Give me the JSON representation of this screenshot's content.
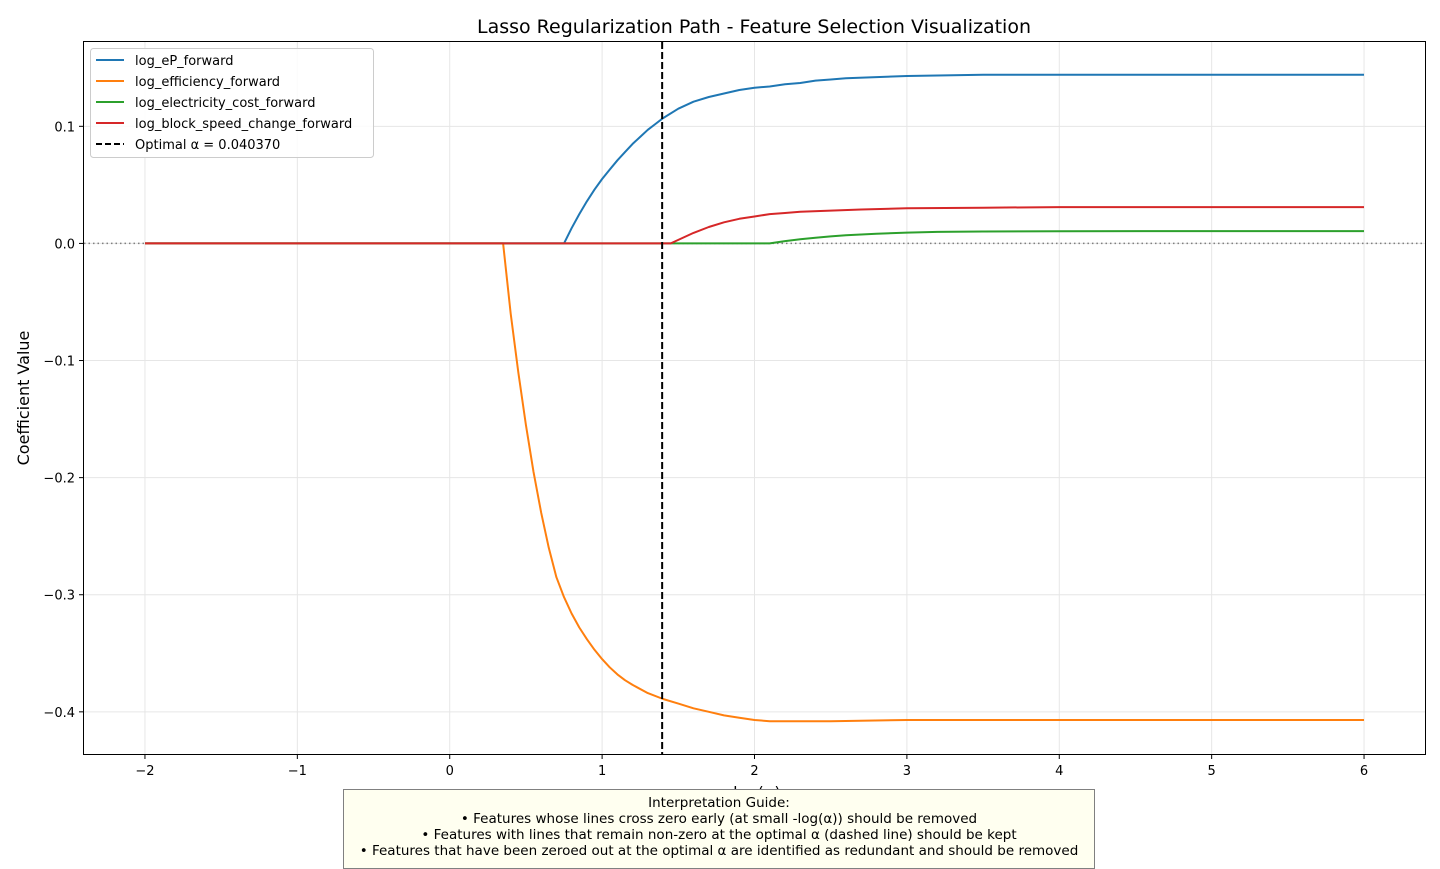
{
  "chart_data": {
    "type": "line",
    "title": "Lasso Regularization Path - Feature Selection Visualization",
    "xlabel": "-log(α)",
    "ylabel": "Coefficient Value",
    "xlim": [
      -2.4,
      6.4
    ],
    "ylim": [
      -0.436,
      0.172
    ],
    "xticks": [
      -2,
      -1,
      0,
      1,
      2,
      3,
      4,
      5,
      6
    ],
    "xtick_labels": [
      "−2",
      "−1",
      "0",
      "1",
      "2",
      "3",
      "4",
      "5",
      "6"
    ],
    "yticks": [
      -0.4,
      -0.3,
      -0.2,
      -0.1,
      0.0,
      0.1
    ],
    "ytick_labels": [
      "−0.4",
      "−0.3",
      "−0.2",
      "−0.1",
      "0.0",
      "0.1"
    ],
    "grid": true,
    "legend_position": "top-left",
    "series": [
      {
        "name": "log_eP_forward",
        "color": "#1f77b4",
        "x": [
          -2,
          0.75,
          0.8,
          0.85,
          0.9,
          0.95,
          1.0,
          1.05,
          1.1,
          1.15,
          1.2,
          1.25,
          1.3,
          1.35,
          1.4,
          1.5,
          1.6,
          1.7,
          1.8,
          1.9,
          2.0,
          2.1,
          2.2,
          2.3,
          2.4,
          2.5,
          2.6,
          2.8,
          3.0,
          3.5,
          4.0,
          5.0,
          6.0
        ],
        "y": [
          0,
          0,
          0.013,
          0.025,
          0.036,
          0.046,
          0.055,
          0.063,
          0.071,
          0.078,
          0.085,
          0.091,
          0.097,
          0.102,
          0.107,
          0.115,
          0.121,
          0.125,
          0.128,
          0.131,
          0.133,
          0.134,
          0.136,
          0.137,
          0.139,
          0.14,
          0.141,
          0.142,
          0.143,
          0.144,
          0.144,
          0.144,
          0.144
        ]
      },
      {
        "name": "log_efficiency_forward",
        "color": "#ff7f0e",
        "x": [
          -2,
          0.35,
          0.4,
          0.45,
          0.5,
          0.55,
          0.6,
          0.65,
          0.7,
          0.75,
          0.8,
          0.85,
          0.9,
          0.95,
          1.0,
          1.05,
          1.1,
          1.15,
          1.2,
          1.3,
          1.4,
          1.5,
          1.6,
          1.7,
          1.8,
          1.9,
          2.0,
          2.1,
          2.2,
          2.5,
          3.0,
          4.0,
          5.0,
          6.0
        ],
        "y": [
          0,
          0,
          -0.06,
          -0.11,
          -0.155,
          -0.195,
          -0.23,
          -0.26,
          -0.285,
          -0.302,
          -0.316,
          -0.328,
          -0.338,
          -0.347,
          -0.355,
          -0.362,
          -0.368,
          -0.373,
          -0.377,
          -0.384,
          -0.389,
          -0.393,
          -0.397,
          -0.4,
          -0.403,
          -0.405,
          -0.407,
          -0.408,
          -0.408,
          -0.408,
          -0.407,
          -0.407,
          -0.407,
          -0.407
        ]
      },
      {
        "name": "log_electricity_cost_forward",
        "color": "#2ca02c",
        "x": [
          -2,
          2.1,
          2.2,
          2.3,
          2.4,
          2.5,
          2.6,
          2.8,
          3.0,
          3.2,
          3.5,
          4.0,
          5.0,
          6.0
        ],
        "y": [
          0,
          0,
          0.002,
          0.0035,
          0.0048,
          0.006,
          0.007,
          0.0083,
          0.0092,
          0.0098,
          0.0102,
          0.0104,
          0.0105,
          0.0105
        ]
      },
      {
        "name": "log_block_speed_change_forward",
        "color": "#d62728",
        "x": [
          -2,
          1.45,
          1.5,
          1.6,
          1.7,
          1.8,
          1.9,
          2.0,
          2.1,
          2.2,
          2.3,
          2.5,
          2.7,
          3.0,
          3.5,
          4.0,
          5.0,
          6.0
        ],
        "y": [
          0,
          0,
          0.003,
          0.009,
          0.014,
          0.018,
          0.021,
          0.023,
          0.025,
          0.026,
          0.027,
          0.028,
          0.029,
          0.03,
          0.0305,
          0.031,
          0.031,
          0.031
        ]
      }
    ],
    "optimal_alpha": {
      "label": "Optimal α = 0.040370",
      "x": 1.394,
      "style": "dashed",
      "color": "#000000"
    },
    "zero_line": {
      "y": 0,
      "style": "dotted",
      "color": "#808080"
    }
  },
  "guide": {
    "title": "Interpretation Guide:",
    "lines": [
      "• Features whose lines cross zero early (at small -log(α)) should be removed",
      "• Features with lines that remain non-zero at the optimal α (dashed line) should be kept",
      "• Features that have been zeroed out at the optimal α are identified as redundant and should be removed"
    ]
  }
}
